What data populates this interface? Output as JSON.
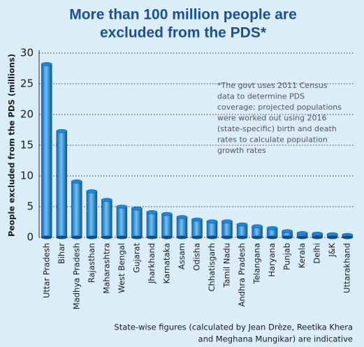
{
  "chart_data": {
    "type": "bar",
    "title": [
      "More than 100 million people are",
      "excluded from the PDS*"
    ],
    "y_label": "People excluded from the PDS (millions)",
    "annotation": [
      "*The govt uses 2011 Census",
      "data to determine PDS",
      "coverage; projected populations",
      "were worked out using 2016",
      "(state-specific) birth and death",
      "rates to calculate population",
      "growth rates"
    ],
    "footnote": [
      "State-wise figures (calculated by Jean Drèze, Reetika Khera",
      "and Meghana Mungikar) are indicative"
    ],
    "categories": [
      "Uttar Pradesh",
      "Bihar",
      "Madhya Pradesh",
      "Rajasthan",
      "Maharashtra",
      "West Bengal",
      "Gujarat",
      "Jharkhand",
      "Karnataka",
      "Assam",
      "Odisha",
      "Chhatisgarh",
      "Tamil Nadu",
      "Andhra Pradesh",
      "Telangana",
      "Haryana",
      "Punjab",
      "Kerala",
      "Delhi",
      "J&K",
      "Uttarakhand"
    ],
    "values": [
      28.2,
      17.3,
      9.1,
      7.5,
      6.1,
      5.0,
      4.7,
      4.1,
      3.8,
      3.3,
      2.9,
      2.6,
      2.6,
      2.1,
      1.8,
      1.5,
      1.0,
      0.7,
      0.6,
      0.5,
      0.4
    ],
    "color": "#1e88d4",
    "ylim": [
      0,
      30
    ],
    "yticks": [
      0,
      5,
      10,
      15,
      20,
      25,
      30
    ],
    "grid": true
  }
}
